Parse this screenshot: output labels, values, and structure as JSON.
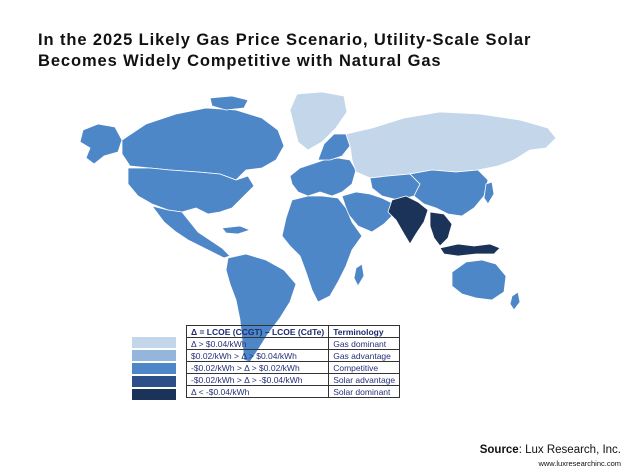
{
  "title": {
    "line1": "In the 2025 Likely Gas Price Scenario, Utility-Scale Solar",
    "line2": "Becomes Widely Competitive with Natural Gas"
  },
  "colors": {
    "gas_dominant": "#c3d6ea",
    "gas_advantage": "#94b6dc",
    "competitive": "#4e87c8",
    "solar_advantage": "#2c4f8a",
    "solar_dominant": "#1b3358",
    "border": "#ffffff"
  },
  "legend": {
    "header_delta": "Δ = LCOE (CCGT) – LCOE (CdTe)",
    "header_terminology": "Terminology",
    "rows": [
      {
        "range": "Δ > $0.04/kWh",
        "term": "Gas dominant",
        "color_key": "gas_dominant"
      },
      {
        "range": "$0.02/kWh > Δ > $0.04/kWh",
        "term": "Gas advantage",
        "color_key": "gas_advantage"
      },
      {
        "range": "-$0.02/kWh > Δ > $0.02/kWh",
        "term": "Competitive",
        "color_key": "competitive"
      },
      {
        "range": "-$0.02/kWh > Δ > -$0.04/kWh",
        "term": "Solar advantage",
        "color_key": "solar_advantage"
      },
      {
        "range": "Δ < -$0.04/kWh",
        "term": "Solar dominant",
        "color_key": "solar_dominant"
      }
    ]
  },
  "regions": [
    {
      "name": "Alaska",
      "category": "competitive"
    },
    {
      "name": "Canada",
      "category": "competitive"
    },
    {
      "name": "United States",
      "category": "competitive"
    },
    {
      "name": "Greenland",
      "category": "gas_dominant"
    },
    {
      "name": "Mexico and Central America",
      "category": "competitive"
    },
    {
      "name": "South America",
      "category": "competitive"
    },
    {
      "name": "Europe",
      "category": "competitive"
    },
    {
      "name": "Scandinavia",
      "category": "competitive"
    },
    {
      "name": "Russia",
      "category": "gas_dominant"
    },
    {
      "name": "Africa",
      "category": "competitive"
    },
    {
      "name": "Middle East",
      "category": "competitive"
    },
    {
      "name": "Central Asia",
      "category": "competitive"
    },
    {
      "name": "China",
      "category": "competitive"
    },
    {
      "name": "India",
      "category": "solar_dominant"
    },
    {
      "name": "Southeast Asia",
      "category": "solar_dominant"
    },
    {
      "name": "Indonesia",
      "category": "solar_dominant"
    },
    {
      "name": "Japan",
      "category": "competitive"
    },
    {
      "name": "Australia",
      "category": "competitive"
    },
    {
      "name": "New Zealand",
      "category": "competitive"
    }
  ],
  "source": {
    "label": "Source",
    "text": ": Lux Research, Inc.",
    "url": "www.luxresearchinc.com"
  }
}
